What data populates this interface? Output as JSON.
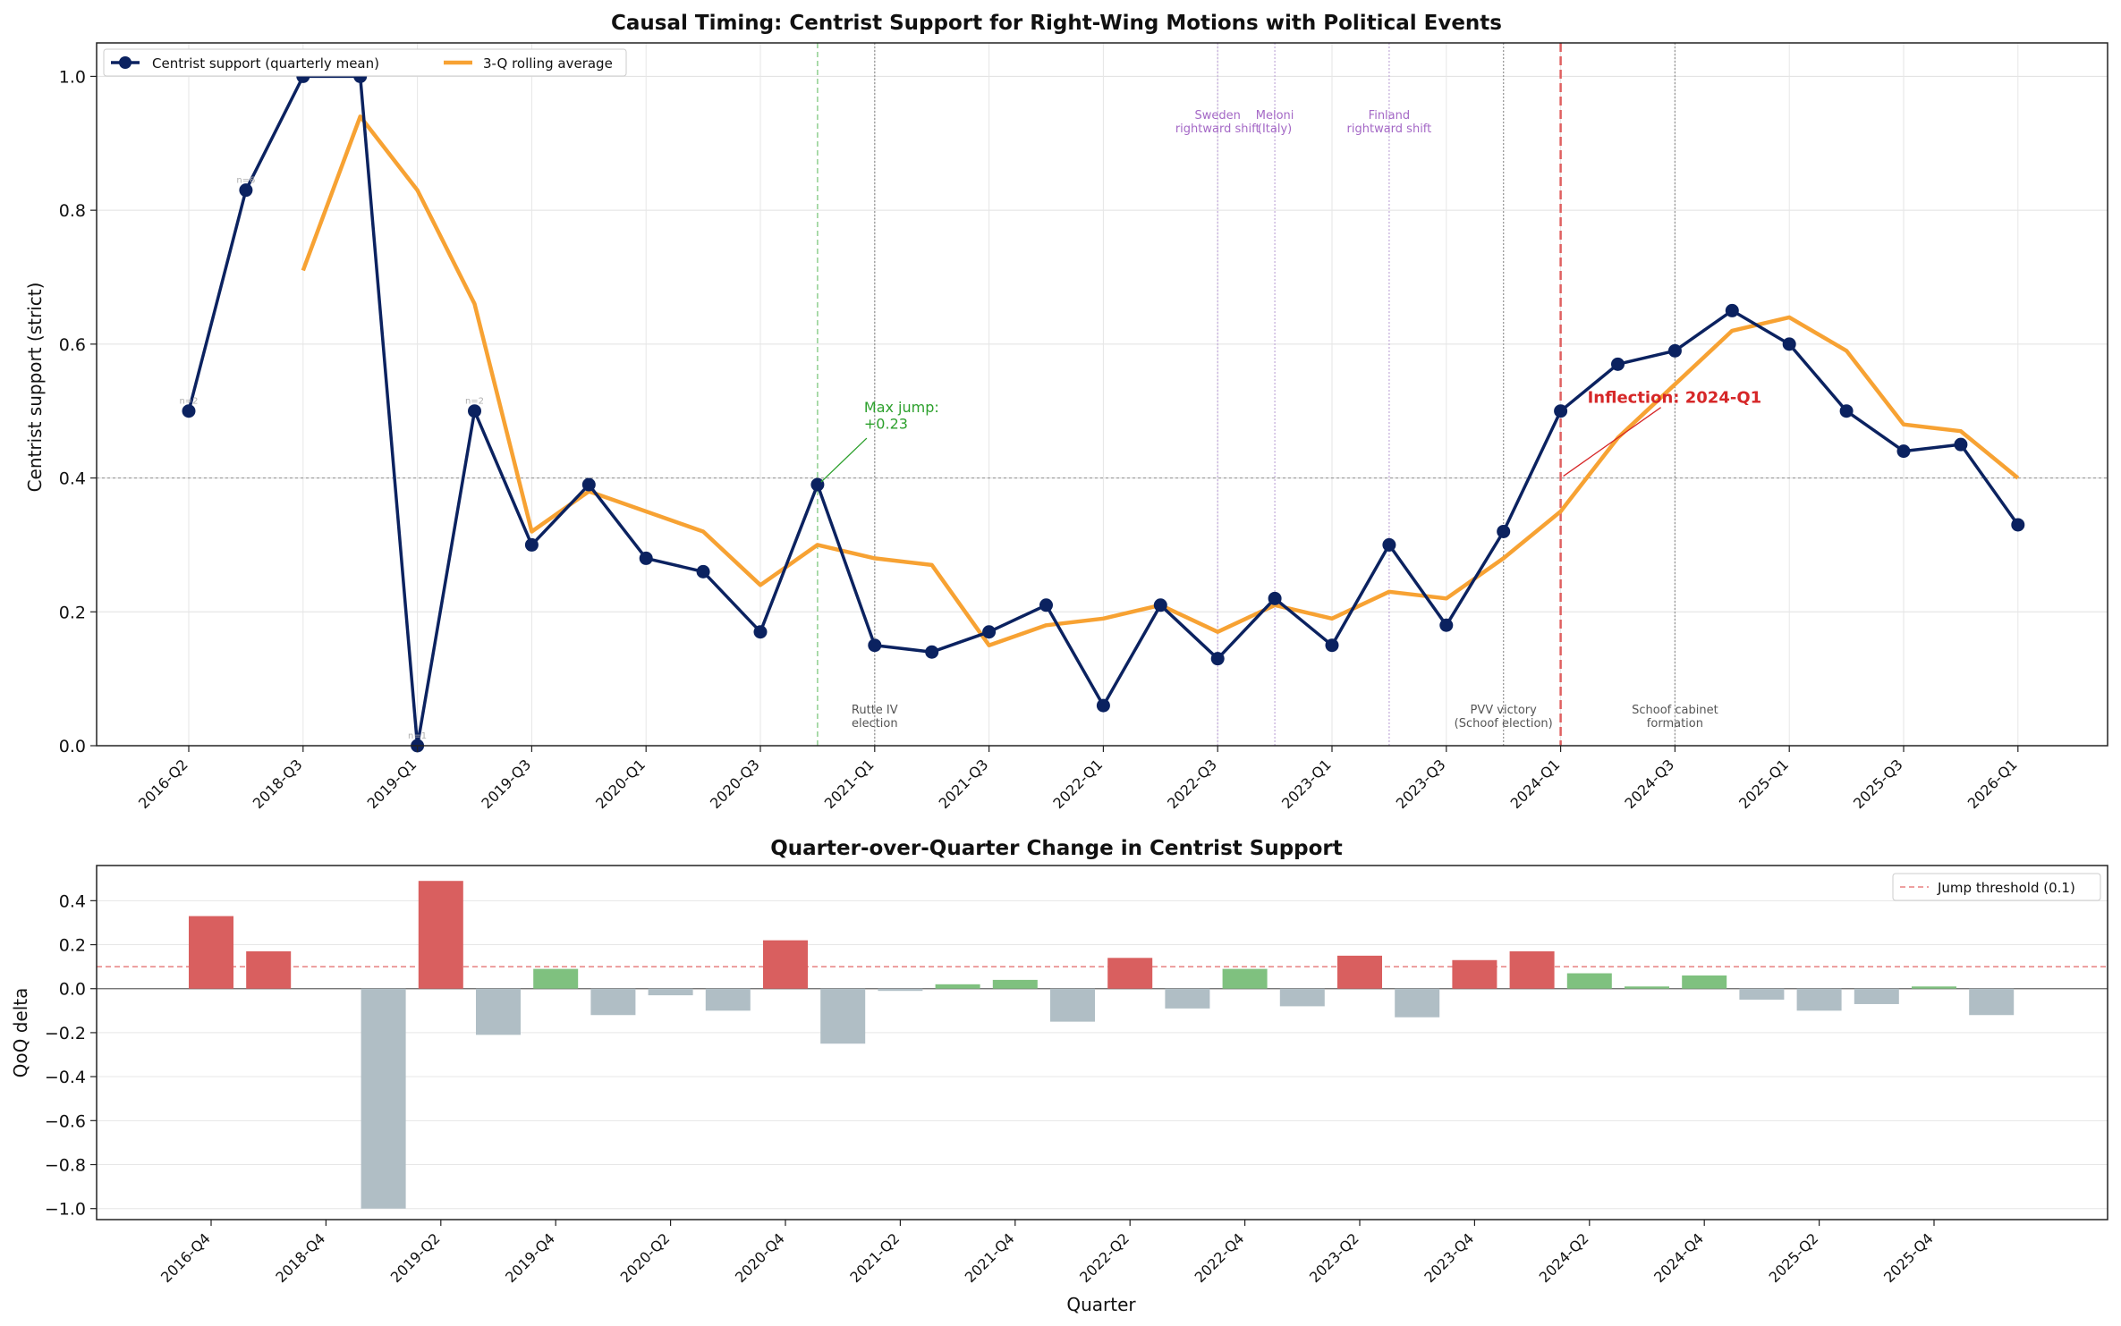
{
  "chart_data": [
    {
      "type": "line",
      "title": "Causal Timing: Centrist Support for Right-Wing Motions with Political Events",
      "xlabel": "",
      "ylabel": "Centrist support (strict)",
      "ylim": [
        0,
        1.05
      ],
      "yticks": [
        "0.0",
        "0.2",
        "0.4",
        "0.6",
        "0.8",
        "1.0"
      ],
      "x_tick_labels": [
        "2016-Q2",
        "2018-Q3",
        "2019-Q1",
        "2019-Q3",
        "2020-Q1",
        "2020-Q3",
        "2021-Q1",
        "2021-Q3",
        "2022-Q1",
        "2022-Q3",
        "2023-Q1",
        "2023-Q3",
        "2024-Q1",
        "2024-Q3",
        "2025-Q1",
        "2025-Q3",
        "2026-Q1"
      ],
      "grid": true,
      "legend_placement": "top-left",
      "colors": {
        "series": "#0b2260",
        "rolling": "#f7a233",
        "inflection": "#d62728",
        "jump": "#2ca02c",
        "event": "#888888",
        "event_international": "#a468c6"
      },
      "series": [
        {
          "name": "Centrist support (quarterly mean)",
          "values": [
            0.5,
            0.83,
            1.0,
            1.0,
            0.0,
            0.5,
            0.3,
            0.39,
            0.28,
            0.26,
            0.17,
            0.39,
            0.15,
            0.14,
            0.17,
            0.21,
            0.06,
            0.21,
            0.13,
            0.22,
            0.15,
            0.3,
            0.18,
            0.32,
            0.5,
            0.57,
            0.59,
            0.65,
            0.6,
            0.5,
            0.44,
            0.45,
            0.33
          ]
        },
        {
          "name": "3-Q rolling average",
          "values": [
            null,
            null,
            0.71,
            0.94,
            0.83,
            0.66,
            0.32,
            0.38,
            0.35,
            0.32,
            0.24,
            0.3,
            0.28,
            0.27,
            0.15,
            0.18,
            0.19,
            0.21,
            0.17,
            0.21,
            0.19,
            0.23,
            0.22,
            0.28,
            0.35,
            0.46,
            0.54,
            0.62,
            0.64,
            0.59,
            0.48,
            0.47,
            0.4
          ]
        }
      ],
      "small_labels": [
        {
          "index": 0,
          "text": "n=2"
        },
        {
          "index": 1,
          "text": "n=6"
        },
        {
          "index": 2,
          "text": "n=1"
        },
        {
          "index": 3,
          "text": "n=1"
        },
        {
          "index": 4,
          "text": "n=1"
        },
        {
          "index": 5,
          "text": "n=2"
        }
      ],
      "event_lines": [
        {
          "pos": 12.0,
          "label": "Rutte IV\nelection",
          "group": "domestic"
        },
        {
          "pos": 18.0,
          "label": "Sweden\nrightward shift",
          "group": "international"
        },
        {
          "pos": 19.0,
          "label": "Meloni\n(Italy)",
          "group": "international"
        },
        {
          "pos": 21.0,
          "label": "Finland\nrightward shift",
          "group": "international"
        },
        {
          "pos": 23.0,
          "label": "PVV victory\n(Schoof election)",
          "group": "domestic"
        },
        {
          "pos": 26.0,
          "label": "Schoof cabinet\nformation",
          "group": "domestic"
        }
      ],
      "reference_line": 0.4,
      "max_jump": {
        "index": 11,
        "pos": 11,
        "label": "Max jump:\n+0.23"
      },
      "inflection": {
        "index": 24,
        "pos": 24,
        "label": "Inflection: 2024-Q1"
      }
    },
    {
      "type": "bar",
      "title": "Quarter-over-Quarter Change in Centrist Support",
      "xlabel": "Quarter",
      "ylabel": "QoQ delta",
      "ylim": [
        -1.05,
        0.56
      ],
      "yticks": [
        "−1.0",
        "−0.8",
        "−0.6",
        "−0.4",
        "−0.2",
        "0.0",
        "0.2",
        "0.4"
      ],
      "x_tick_labels": [
        "2016-Q4",
        "2018-Q4",
        "2019-Q2",
        "2019-Q4",
        "2020-Q2",
        "2020-Q4",
        "2021-Q2",
        "2021-Q4",
        "2022-Q2",
        "2022-Q4",
        "2023-Q2",
        "2023-Q4",
        "2024-Q2",
        "2024-Q4",
        "2025-Q2",
        "2025-Q4"
      ],
      "threshold": 0.1,
      "threshold_label": "Jump threshold (0.1)",
      "legend_placement": "top-right",
      "grid": true,
      "colors": {
        "jump": "#d95f5f",
        "rise": "#7fc17f",
        "fall": "#b0bec5",
        "threshold": "#e88080"
      },
      "values": [
        0.33,
        0.17,
        null,
        -1.0,
        0.49,
        -0.21,
        0.09,
        -0.12,
        -0.03,
        -0.1,
        0.22,
        -0.25,
        -0.01,
        0.02,
        0.04,
        -0.15,
        0.14,
        -0.09,
        0.09,
        -0.08,
        0.15,
        -0.13,
        0.13,
        0.17,
        0.07,
        0.01,
        0.06,
        -0.05,
        -0.1,
        -0.07,
        0.01,
        -0.12
      ]
    }
  ]
}
